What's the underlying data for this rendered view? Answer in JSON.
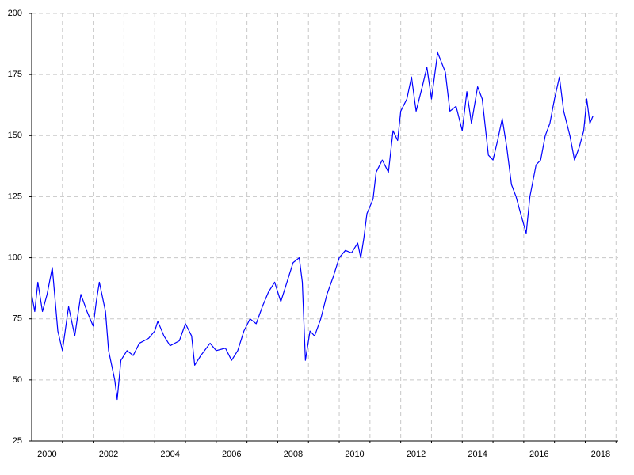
{
  "chart_data": {
    "type": "line",
    "x": [
      2000.0,
      2000.1,
      2000.2,
      2000.35,
      2000.5,
      2000.67,
      2000.85,
      2001.0,
      2001.2,
      2001.4,
      2001.6,
      2001.8,
      2002.0,
      2002.1,
      2002.2,
      2002.4,
      2002.5,
      2002.7,
      2002.78,
      2002.9,
      2003.1,
      2003.3,
      2003.5,
      2003.8,
      2004.0,
      2004.1,
      2004.3,
      2004.5,
      2004.8,
      2005.0,
      2005.2,
      2005.3,
      2005.5,
      2005.8,
      2006.0,
      2006.3,
      2006.5,
      2006.7,
      2006.9,
      2007.1,
      2007.3,
      2007.5,
      2007.7,
      2007.9,
      2008.1,
      2008.3,
      2008.5,
      2008.7,
      2008.8,
      2008.9,
      2009.05,
      2009.2,
      2009.4,
      2009.6,
      2009.8,
      2010.0,
      2010.2,
      2010.4,
      2010.6,
      2010.7,
      2010.8,
      2010.9,
      2011.1,
      2011.2,
      2011.4,
      2011.6,
      2011.75,
      2011.9,
      2012.0,
      2012.2,
      2012.35,
      2012.5,
      2012.7,
      2012.85,
      2013.0,
      2013.2,
      2013.45,
      2013.6,
      2013.8,
      2014.0,
      2014.15,
      2014.3,
      2014.5,
      2014.65,
      2014.85,
      2015.0,
      2015.15,
      2015.3,
      2015.45,
      2015.6,
      2015.75,
      2015.9,
      2016.08,
      2016.2,
      2016.4,
      2016.55,
      2016.7,
      2016.85,
      2017.0,
      2017.16,
      2017.3,
      2017.5,
      2017.65,
      2017.8,
      2017.95,
      2018.05,
      2018.15,
      2018.25
    ],
    "series": [
      {
        "color": "#0000ff",
        "values": [
          85,
          78,
          90,
          78,
          85,
          96,
          70,
          62,
          80,
          68,
          85,
          78,
          72,
          82,
          90,
          78,
          62,
          50,
          42,
          58,
          62,
          60,
          65,
          67,
          70,
          74,
          68,
          64,
          66,
          73,
          68,
          56,
          60,
          65,
          62,
          63,
          58,
          62,
          70,
          75,
          73,
          80,
          86,
          90,
          82,
          90,
          98,
          100,
          90,
          58,
          70,
          68,
          75,
          85,
          92,
          100,
          103,
          102,
          106,
          100,
          108,
          118,
          124,
          135,
          140,
          135,
          152,
          148,
          160,
          165,
          174,
          160,
          170,
          178,
          165,
          184,
          176,
          160,
          162,
          152,
          168,
          155,
          170,
          165,
          142,
          140,
          148,
          157,
          145,
          130,
          125,
          118,
          110,
          125,
          138,
          140,
          150,
          155,
          165,
          174,
          160,
          150,
          140,
          145,
          152,
          165,
          155,
          158
        ]
      }
    ],
    "xlim": [
      2000,
      2019.07
    ],
    "xgrid": [
      2001,
      2002,
      2003,
      2004,
      2005,
      2006,
      2007,
      2008,
      2009,
      2010,
      2011,
      2012,
      2013,
      2014,
      2015,
      2016,
      2017,
      2018,
      2019
    ],
    "xticks": [
      {
        "value": 2000.5,
        "label": "2000"
      },
      {
        "value": 2002.5,
        "label": "2002"
      },
      {
        "value": 2004.5,
        "label": "2004"
      },
      {
        "value": 2006.5,
        "label": "2006"
      },
      {
        "value": 2008.5,
        "label": "2008"
      },
      {
        "value": 2010.5,
        "label": "2010"
      },
      {
        "value": 2012.5,
        "label": "2012"
      },
      {
        "value": 2014.5,
        "label": "2014"
      },
      {
        "value": 2016.5,
        "label": "2016"
      },
      {
        "value": 2018.5,
        "label": "2018"
      }
    ],
    "ylim": [
      25,
      200
    ],
    "yticks": [
      25,
      50,
      75,
      100,
      125,
      150,
      175,
      200
    ],
    "grid": true
  }
}
